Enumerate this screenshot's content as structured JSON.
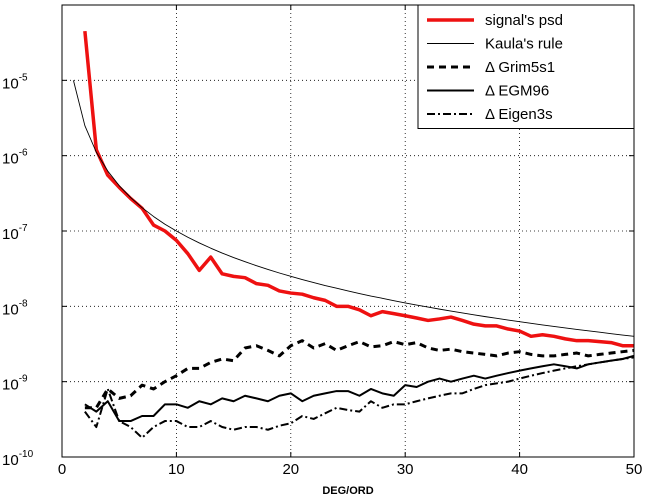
{
  "chart_data": {
    "type": "line",
    "xlabel": "DEG/ORD",
    "ylabel": "",
    "xlim": [
      0,
      50
    ],
    "ylim": [
      1e-10,
      0.0001
    ],
    "yscale": "log",
    "grid": true,
    "legend_position": "top-right",
    "x_ticks": [
      0,
      10,
      20,
      30,
      40,
      50
    ],
    "y_ticks": [
      {
        "value": 1e-10,
        "base": "10",
        "exp": "-10"
      },
      {
        "value": 1e-09,
        "base": "10",
        "exp": "-9"
      },
      {
        "value": 1e-08,
        "base": "10",
        "exp": "-8"
      },
      {
        "value": 1e-07,
        "base": "10",
        "exp": "-7"
      },
      {
        "value": 1e-06,
        "base": "10",
        "exp": "-6"
      },
      {
        "value": 1e-05,
        "base": "10",
        "exp": "-5"
      }
    ],
    "series": [
      {
        "name": "signal's psd",
        "color": "#ee1111",
        "width": 3.5,
        "dash": "solid",
        "x": [
          2,
          3,
          4,
          5,
          6,
          7,
          8,
          9,
          10,
          11,
          12,
          13,
          14,
          15,
          16,
          17,
          18,
          19,
          20,
          21,
          22,
          23,
          24,
          25,
          26,
          27,
          28,
          29,
          30,
          31,
          32,
          33,
          34,
          35,
          36,
          37,
          38,
          39,
          40,
          41,
          42,
          43,
          44,
          45,
          46,
          47,
          48,
          49,
          50
        ],
        "y": [
          4.5e-05,
          1.2e-06,
          5.5e-07,
          3.8e-07,
          2.7e-07,
          2e-07,
          1.2e-07,
          1e-07,
          7.5e-08,
          5e-08,
          3e-08,
          4.5e-08,
          2.7e-08,
          2.5e-08,
          2.4e-08,
          2e-08,
          1.9e-08,
          1.6e-08,
          1.5e-08,
          1.45e-08,
          1.3e-08,
          1.2e-08,
          1e-08,
          1e-08,
          9e-09,
          7.5e-09,
          8.5e-09,
          8e-09,
          7.5e-09,
          7e-09,
          6.5e-09,
          6.8e-09,
          7.2e-09,
          6.5e-09,
          5.8e-09,
          5.5e-09,
          5.5e-09,
          5e-09,
          4.7e-09,
          4e-09,
          4.2e-09,
          4e-09,
          3.7e-09,
          3.5e-09,
          3.5e-09,
          3.4e-09,
          3.3e-09,
          3e-09,
          3e-09
        ]
      },
      {
        "name": "Kaula's rule",
        "color": "#000000",
        "width": 0.9,
        "dash": "solid",
        "x": [
          1,
          2,
          3,
          4,
          5,
          6,
          7,
          8,
          9,
          10,
          11,
          12,
          13,
          14,
          15,
          16,
          17,
          18,
          19,
          20,
          21,
          22,
          23,
          24,
          25,
          26,
          27,
          28,
          29,
          30,
          31,
          32,
          33,
          34,
          35,
          36,
          37,
          38,
          39,
          40,
          41,
          42,
          43,
          44,
          45,
          46,
          47,
          48,
          49,
          50
        ],
        "y": [
          1e-05,
          2.5e-06,
          1.11e-06,
          6.25e-07,
          4e-07,
          2.78e-07,
          2.04e-07,
          1.56e-07,
          1.23e-07,
          1e-07,
          8.26e-08,
          6.94e-08,
          5.92e-08,
          5.1e-08,
          4.44e-08,
          3.91e-08,
          3.46e-08,
          3.09e-08,
          2.77e-08,
          2.5e-08,
          2.27e-08,
          2.07e-08,
          1.89e-08,
          1.74e-08,
          1.6e-08,
          1.48e-08,
          1.37e-08,
          1.28e-08,
          1.19e-08,
          1.11e-08,
          1.04e-08,
          9.77e-09,
          9.18e-09,
          8.65e-09,
          8.16e-09,
          7.72e-09,
          7.3e-09,
          6.93e-09,
          6.57e-09,
          6.25e-09,
          5.95e-09,
          5.67e-09,
          5.41e-09,
          5.17e-09,
          4.94e-09,
          4.73e-09,
          4.53e-09,
          4.34e-09,
          4.16e-09,
          4e-09
        ]
      },
      {
        "name": "Δ Grim5s1",
        "color": "#000000",
        "width": 3,
        "dash": "7,5",
        "x": [
          2,
          3,
          4,
          5,
          6,
          7,
          8,
          9,
          10,
          11,
          12,
          13,
          14,
          15,
          16,
          17,
          18,
          19,
          20,
          21,
          22,
          23,
          24,
          25,
          26,
          27,
          28,
          29,
          30,
          31,
          32,
          33,
          34,
          35,
          36,
          37,
          38,
          39,
          40,
          41,
          42,
          43,
          44,
          45,
          46,
          47,
          48,
          49,
          50
        ],
        "y": [
          4.5e-10,
          4.5e-10,
          8e-10,
          6e-10,
          6.5e-10,
          9e-10,
          8e-10,
          1e-09,
          1.2e-09,
          1.5e-09,
          1.5e-09,
          1.8e-09,
          2e-09,
          1.9e-09,
          2.8e-09,
          3e-09,
          2.6e-09,
          2.2e-09,
          3e-09,
          3.5e-09,
          2.8e-09,
          3.2e-09,
          2.6e-09,
          3e-09,
          3.4e-09,
          2.9e-09,
          3e-09,
          3.4e-09,
          3.1e-09,
          3.3e-09,
          2.8e-09,
          2.6e-09,
          2.7e-09,
          2.5e-09,
          2.4e-09,
          2.3e-09,
          2.2e-09,
          2.4e-09,
          2.5e-09,
          2.3e-09,
          2.2e-09,
          2.2e-09,
          2.3e-09,
          2.4e-09,
          2.2e-09,
          2.3e-09,
          2.4e-09,
          2.5e-09,
          2.6e-09
        ]
      },
      {
        "name": "Δ EGM96",
        "color": "#000000",
        "width": 2,
        "dash": "solid",
        "x": [
          2,
          3,
          4,
          5,
          6,
          7,
          8,
          9,
          10,
          11,
          12,
          13,
          14,
          15,
          16,
          17,
          18,
          19,
          20,
          21,
          22,
          23,
          24,
          25,
          26,
          27,
          28,
          29,
          30,
          31,
          32,
          33,
          34,
          35,
          36,
          37,
          38,
          39,
          40,
          41,
          42,
          43,
          44,
          45,
          46,
          47,
          48,
          49,
          50
        ],
        "y": [
          5e-10,
          4e-10,
          5.5e-10,
          3e-10,
          3e-10,
          3.5e-10,
          3.5e-10,
          5e-10,
          5e-10,
          4.5e-10,
          5.5e-10,
          5e-10,
          6e-10,
          5.5e-10,
          6.5e-10,
          6e-10,
          5.5e-10,
          6.5e-10,
          7e-10,
          5.5e-10,
          6.5e-10,
          7e-10,
          7.5e-10,
          7.5e-10,
          6.5e-10,
          8e-10,
          7e-10,
          6.5e-10,
          9e-10,
          8.5e-10,
          1e-09,
          1.1e-09,
          1e-09,
          1.1e-09,
          1.2e-09,
          1.1e-09,
          1.2e-09,
          1.3e-09,
          1.4e-09,
          1.5e-09,
          1.6e-09,
          1.7e-09,
          1.6e-09,
          1.5e-09,
          1.7e-09,
          1.8e-09,
          1.9e-09,
          2e-09,
          2.2e-09
        ]
      },
      {
        "name": "Δ Eigen3s",
        "color": "#000000",
        "width": 2,
        "dash": "8,3,2,3",
        "x": [
          2,
          3,
          4,
          5,
          6,
          7,
          8,
          9,
          10,
          11,
          12,
          13,
          14,
          15,
          16,
          17,
          18,
          19,
          20,
          21,
          22,
          23,
          24,
          25,
          26,
          27,
          28,
          29,
          30,
          31,
          32,
          33,
          34,
          35,
          36,
          37,
          38,
          39,
          40,
          41,
          42,
          43,
          44,
          45,
          46,
          47,
          48,
          49,
          50
        ],
        "y": [
          4e-10,
          2.5e-10,
          8e-10,
          3e-10,
          2.5e-10,
          1.8e-10,
          2.5e-10,
          3e-10,
          3e-10,
          2.5e-10,
          2.5e-10,
          3e-10,
          2.5e-10,
          2.3e-10,
          2.5e-10,
          2.5e-10,
          2.3e-10,
          2.6e-10,
          2.8e-10,
          3.5e-10,
          3.2e-10,
          3.8e-10,
          4.5e-10,
          4.2e-10,
          4e-10,
          5.5e-10,
          4.5e-10,
          5e-10,
          5e-10,
          5.5e-10,
          6e-10,
          6.5e-10,
          7e-10,
          7e-10,
          8e-10,
          9e-10,
          9.5e-10,
          1e-09,
          1.1e-09,
          1.2e-09,
          1.3e-09,
          1.4e-09,
          1.5e-09,
          1.6e-09,
          1.7e-09,
          1.8e-09,
          1.9e-09,
          2e-09,
          2.1e-09
        ]
      }
    ]
  }
}
